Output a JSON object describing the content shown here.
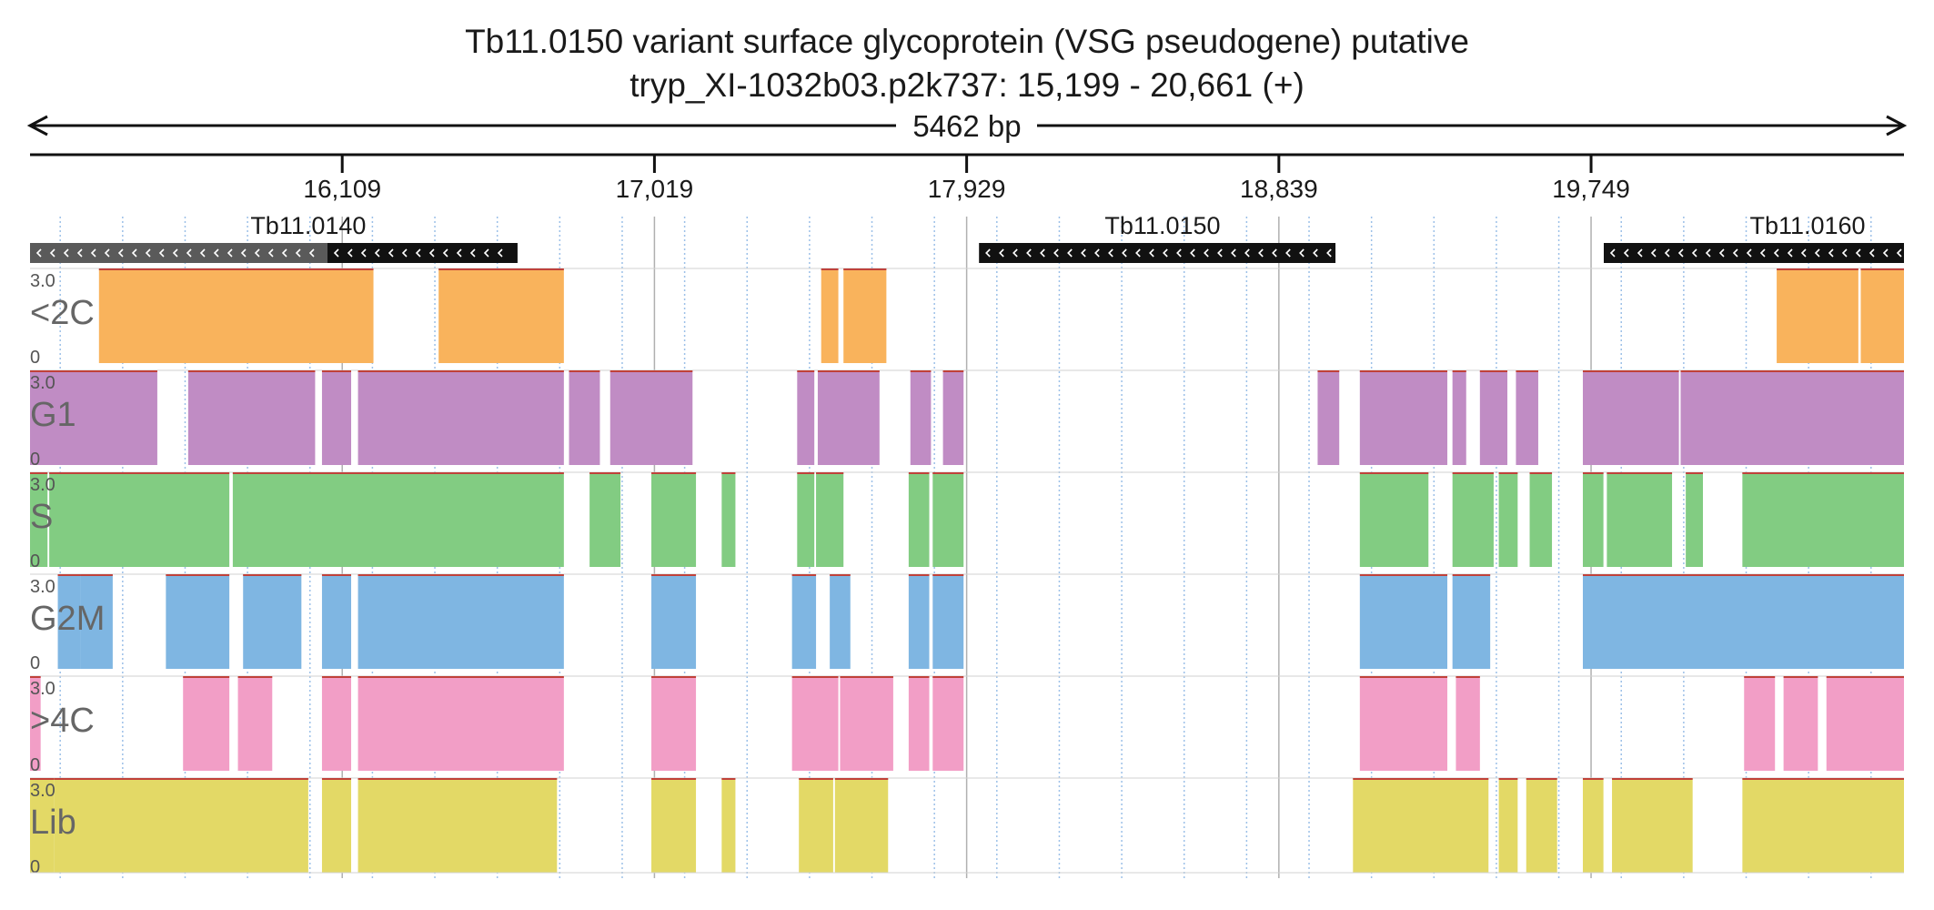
{
  "chart_data": {
    "type": "bar",
    "title": "Tb11.0150  variant surface glycoprotein (VSG  pseudogene)  putative",
    "subtitle": "tryp_XI-1032b03.p2k737: 15,199 - 20,661 (+)",
    "length_label": "5462 bp",
    "xlim": [
      15199,
      20661
    ],
    "ticks": [
      {
        "value": 16109,
        "label": "16,109"
      },
      {
        "value": 17019,
        "label": "17,019"
      },
      {
        "value": 17929,
        "label": "17,929"
      },
      {
        "value": 18839,
        "label": "18,839"
      },
      {
        "value": 19749,
        "label": "19,749"
      }
    ],
    "grid": true,
    "genes": [
      {
        "name": "Tb11.0140",
        "start": 15199,
        "end": 16620,
        "strand": "-",
        "label_at": 16010,
        "segments": [
          {
            "start": 15199,
            "end": 16066,
            "shade": "#5a5a5a"
          },
          {
            "start": 16066,
            "end": 16620,
            "shade": "#111111"
          }
        ]
      },
      {
        "name": "Tb11.0150",
        "start": 17965,
        "end": 19004,
        "strand": "-",
        "label_at": 18500,
        "segments": [
          {
            "start": 17965,
            "end": 19004,
            "shade": "#111111"
          }
        ]
      },
      {
        "name": "Tb11.0160",
        "start": 19786,
        "end": 20661,
        "strand": "-",
        "label_at": 20380,
        "segments": [
          {
            "start": 19786,
            "end": 20661,
            "shade": "#111111"
          }
        ]
      }
    ],
    "y_axis": {
      "max_label": "3.0",
      "min_label": "0",
      "ylim": [
        0,
        3.0
      ]
    },
    "series": [
      {
        "name": "<2C",
        "color": "#f9b35c",
        "value": 3.0,
        "blocks": [
          [
            15400,
            16200
          ],
          [
            16390,
            16755
          ],
          [
            17505,
            17555
          ],
          [
            17570,
            17695
          ],
          [
            20290,
            20528
          ],
          [
            20535,
            20661
          ]
        ]
      },
      {
        "name": "G1",
        "color": "#c08cc4",
        "value": 3.0,
        "blocks": [
          [
            15199,
            15570
          ],
          [
            15660,
            16030
          ],
          [
            16050,
            16135
          ],
          [
            16155,
            16755
          ],
          [
            16770,
            16860
          ],
          [
            16890,
            17130
          ],
          [
            17435,
            17485
          ],
          [
            17495,
            17675
          ],
          [
            17765,
            17825
          ],
          [
            17860,
            17920
          ],
          [
            18952,
            19015
          ],
          [
            19075,
            19330
          ],
          [
            19345,
            19385
          ],
          [
            19425,
            19505
          ],
          [
            19530,
            19595
          ],
          [
            19725,
            20005
          ],
          [
            20010,
            20661
          ]
        ]
      },
      {
        "name": "S",
        "color": "#82cc82",
        "value": 3.0,
        "blocks": [
          [
            15199,
            15250
          ],
          [
            15255,
            15780
          ],
          [
            15790,
            16755
          ],
          [
            16830,
            16920
          ],
          [
            17010,
            17140
          ],
          [
            17215,
            17255
          ],
          [
            17435,
            17485
          ],
          [
            17490,
            17570
          ],
          [
            17760,
            17820
          ],
          [
            17830,
            17920
          ],
          [
            19075,
            19275
          ],
          [
            19345,
            19465
          ],
          [
            19480,
            19535
          ],
          [
            19570,
            19635
          ],
          [
            19725,
            19785
          ],
          [
            19795,
            19985
          ],
          [
            20025,
            20075
          ],
          [
            20190,
            20661
          ]
        ]
      },
      {
        "name": "G2M",
        "color": "#7fb6e2",
        "value": 3.0,
        "blocks": [
          [
            15280,
            15345
          ],
          [
            15345,
            15440
          ],
          [
            15595,
            15780
          ],
          [
            15820,
            15990
          ],
          [
            16050,
            16135
          ],
          [
            16155,
            16755
          ],
          [
            17010,
            17140
          ],
          [
            17420,
            17490
          ],
          [
            17530,
            17590
          ],
          [
            17760,
            17820
          ],
          [
            17830,
            17920
          ],
          [
            19075,
            19330
          ],
          [
            19345,
            19455
          ],
          [
            19725,
            20661
          ]
        ]
      },
      {
        "name": ">4C",
        "color": "#f29ec6",
        "value": 3.0,
        "blocks": [
          [
            15199,
            15230
          ],
          [
            15645,
            15780
          ],
          [
            15805,
            15905
          ],
          [
            16050,
            16135
          ],
          [
            16155,
            16755
          ],
          [
            17010,
            17140
          ],
          [
            17420,
            17555
          ],
          [
            17560,
            17715
          ],
          [
            17760,
            17820
          ],
          [
            17830,
            17920
          ],
          [
            19075,
            19330
          ],
          [
            19355,
            19425
          ],
          [
            20195,
            20285
          ],
          [
            20310,
            20410
          ],
          [
            20435,
            20661
          ]
        ]
      },
      {
        "name": "Lib",
        "color": "#e3d966",
        "value": 3.0,
        "blocks": [
          [
            15199,
            15270
          ],
          [
            15270,
            16010
          ],
          [
            16050,
            16135
          ],
          [
            16155,
            16735
          ],
          [
            17010,
            17140
          ],
          [
            17215,
            17255
          ],
          [
            17440,
            17540
          ],
          [
            17545,
            17700
          ],
          [
            19055,
            19450
          ],
          [
            19480,
            19535
          ],
          [
            19560,
            19650
          ],
          [
            19725,
            19785
          ],
          [
            19810,
            20045
          ],
          [
            20190,
            20490
          ],
          [
            20490,
            20661
          ]
        ]
      }
    ]
  }
}
